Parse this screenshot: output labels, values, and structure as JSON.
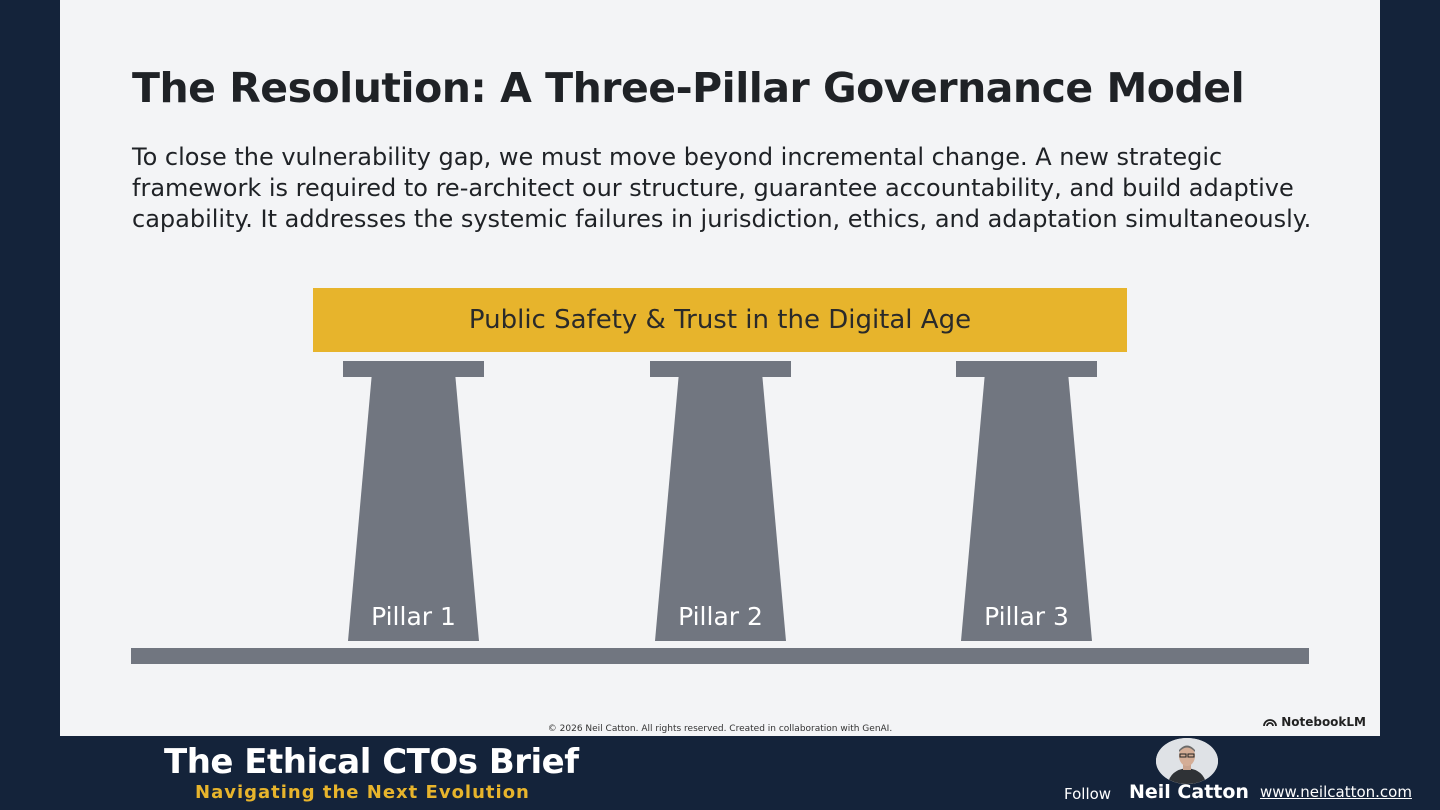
{
  "slide": {
    "title": "The Resolution: A Three-Pillar Governance Model",
    "body": "To close the vulnerability gap, we must move beyond incremental change. A new strategic framework is required to re-architect our structure, guarantee accountability, and build adaptive capability. It addresses the systemic failures in jurisdiction, ethics, and adaptation simultaneously.",
    "banner": "Public Safety & Trust in the Digital Age",
    "pillars": [
      {
        "label": "Pillar 1"
      },
      {
        "label": "Pillar 2"
      },
      {
        "label": "Pillar 3"
      }
    ],
    "copyright": "© 2026 Neil Catton. All rights reserved. Created in collaboration with GenAI.",
    "watermark": "NotebookLM"
  },
  "footer": {
    "brand_title": "The Ethical CTOs Brief",
    "brand_subtitle": "Navigating the Next Evolution",
    "follow_label": "Follow",
    "author_name": "Neil Catton",
    "website": "www.neilcatton.com"
  },
  "colors": {
    "background": "#14233a",
    "slide": "#f3f4f6",
    "accent": "#e7b42c",
    "pillar": "#717680"
  }
}
